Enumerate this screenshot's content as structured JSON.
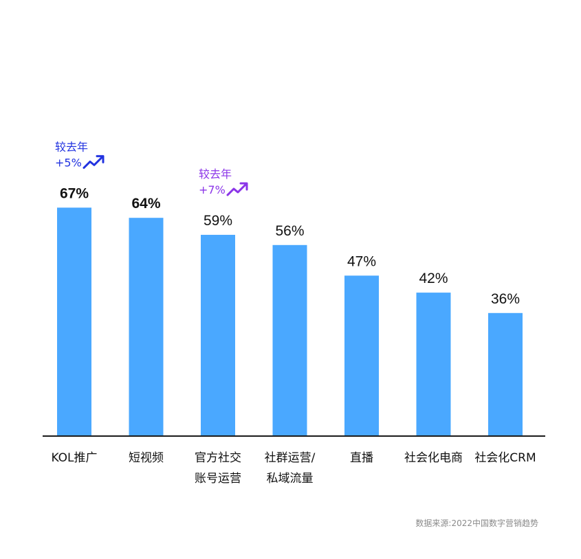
{
  "chart_data": {
    "type": "bar",
    "categories": [
      [
        "KOL推广"
      ],
      [
        "短视频"
      ],
      [
        "官方社交",
        "账号运营"
      ],
      [
        "社群运营/",
        "私域流量"
      ],
      [
        "直播"
      ],
      [
        "社会化电商"
      ],
      [
        "社会化CRM"
      ]
    ],
    "values": [
      67,
      64,
      59,
      56,
      47,
      42,
      36
    ],
    "value_labels": [
      "67%",
      "64%",
      "59%",
      "56%",
      "47%",
      "42%",
      "36%"
    ],
    "bold_value_indices": [
      0,
      1
    ],
    "ylim": [
      0,
      100
    ],
    "bar_color": "#4AA8FF",
    "axis_color": "#1a1a1a",
    "grid": false,
    "annotations": [
      {
        "bar_index": 0,
        "line1": "较去年",
        "line2": "+5%",
        "color": "#2233E0",
        "icon": "trend-up-icon"
      },
      {
        "bar_index": 2,
        "line1": "较去年",
        "line2": "+7%",
        "color": "#8B35E8",
        "icon": "trend-up-icon"
      }
    ]
  },
  "source": "数据来源:2022中国数字营销趋势"
}
